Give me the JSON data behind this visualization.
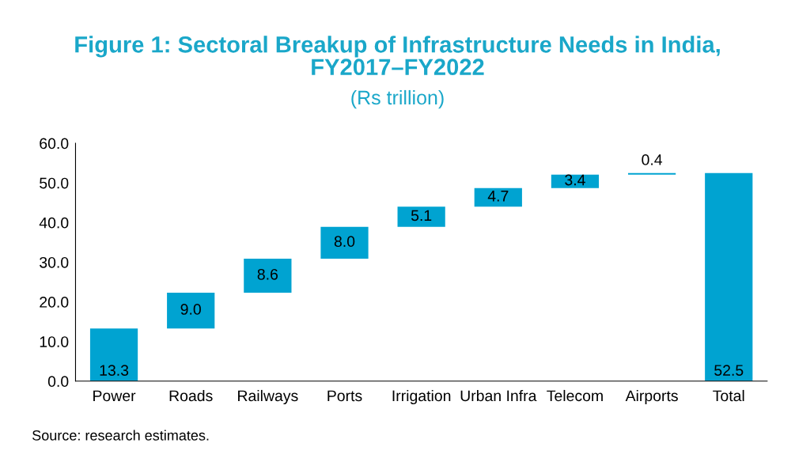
{
  "chart_data": {
    "type": "bar",
    "title": "Figure 1: Sectoral Breakup of Infrastructure Needs in India,\nFY2017–FY2022",
    "subtitle": "(Rs trillion)",
    "categories": [
      "Power",
      "Roads",
      "Railways",
      "Ports",
      "Irrigation",
      "Urban Infra",
      "Telecom",
      "Airports",
      "Total"
    ],
    "values": [
      13.3,
      9.0,
      8.6,
      8.0,
      5.1,
      4.7,
      3.4,
      0.4,
      52.5
    ],
    "base": [
      0,
      13.3,
      22.3,
      30.9,
      38.9,
      44.0,
      48.7,
      52.1,
      0
    ],
    "value_labels": [
      "13.3",
      "9.0",
      "8.6",
      "8.0",
      "5.1",
      "4.7",
      "3.4",
      "0.4",
      "52.5"
    ],
    "color": "#00a3d1",
    "ylim": [
      0,
      60
    ],
    "yticks": [
      {
        "value": 0,
        "label": "0.0"
      },
      {
        "value": 10,
        "label": "10.0"
      },
      {
        "value": 20,
        "label": "20.0"
      },
      {
        "value": 30,
        "label": "30.0"
      },
      {
        "value": 40,
        "label": "40.0"
      },
      {
        "value": 50,
        "label": "50.0"
      },
      {
        "value": 60,
        "label": "60.0"
      }
    ],
    "grid": false,
    "annotations": [
      "Source: research estimates."
    ]
  }
}
